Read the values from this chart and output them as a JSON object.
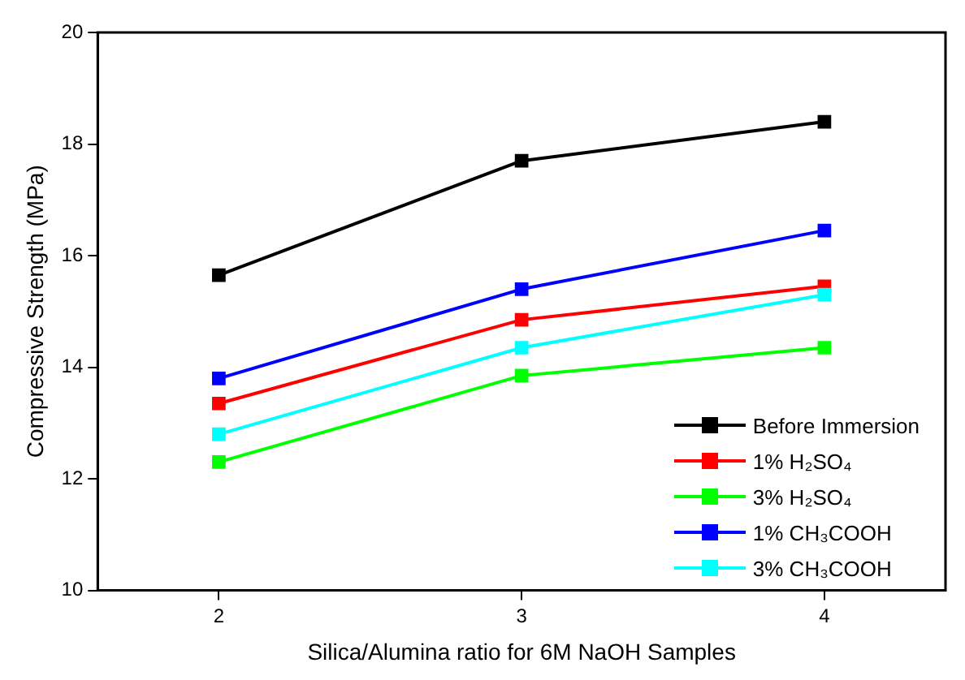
{
  "chart_data": {
    "type": "line",
    "xlabel": "Silica/Alumina ratio for 6M NaOH Samples",
    "ylabel": "Compressive Strength (MPa)",
    "x": [
      2,
      3,
      4
    ],
    "xlim": [
      1.6,
      4.4
    ],
    "xticks": [
      2,
      3,
      4
    ],
    "ylim": [
      10,
      20
    ],
    "yticks": [
      10,
      12,
      14,
      16,
      18,
      20
    ],
    "marker": "square",
    "grid": false,
    "legend": "bottom right",
    "series": [
      {
        "name": "Before Immersion",
        "color": "#000000",
        "values": [
          15.65,
          17.7,
          18.4
        ]
      },
      {
        "name": "1% H₂SO₄",
        "color": "#ff0000",
        "values": [
          13.35,
          14.85,
          15.45
        ]
      },
      {
        "name": "3% H₂SO₄",
        "color": "#00ff00",
        "values": [
          12.3,
          13.85,
          14.35
        ]
      },
      {
        "name": "1% CH₃COOH",
        "color": "#0000ff",
        "values": [
          13.8,
          15.4,
          16.45
        ]
      },
      {
        "name": "3% CH₃COOH",
        "color": "#00ffff",
        "values": [
          12.8,
          14.35,
          15.3
        ]
      }
    ]
  }
}
